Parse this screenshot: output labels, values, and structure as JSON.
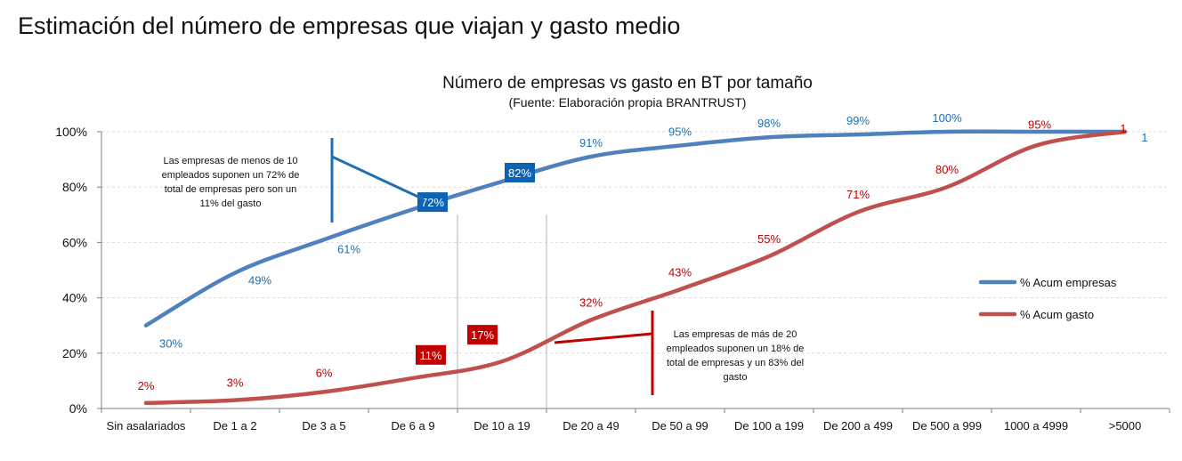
{
  "page": {
    "title": "Estimación del número de empresas que viajan y gasto medio"
  },
  "chart_data": {
    "type": "line",
    "title": "Número de empresas vs gasto en BT por tamaño",
    "subtitle": "(Fuente: Elaboración propia BRANTRUST)",
    "categories": [
      "Sin asalariados",
      "De 1 a 2",
      "De 3 a 5",
      "De 6 a 9",
      "De 10 a 19",
      "De 20 a 49",
      "De 50 a 99",
      "De 100 a 199",
      "De 200 a 499",
      "De 500 a 999",
      "1000 a 4999",
      ">5000"
    ],
    "ylim": [
      0,
      1
    ],
    "yticks": [
      {
        "value": 0,
        "label": "0%"
      },
      {
        "value": 0.2,
        "label": "20%"
      },
      {
        "value": 0.4,
        "label": "40%"
      },
      {
        "value": 0.6,
        "label": "60%"
      },
      {
        "value": 0.8,
        "label": "80%"
      },
      {
        "value": 1.0,
        "label": "100%"
      }
    ],
    "grid": true,
    "legend_position": "right",
    "series": [
      {
        "name": "% Acum empresas",
        "color": "#4f81bd",
        "label_color": "#1f6fb4",
        "values": [
          0.3,
          0.49,
          0.61,
          0.72,
          0.82,
          0.91,
          0.95,
          0.98,
          0.99,
          1.0,
          1.0,
          1.0
        ],
        "labels": [
          "30%",
          "49%",
          "61%",
          "72%",
          "82%",
          "91%",
          "95%",
          "98%",
          "99%",
          "100%",
          "",
          "1"
        ],
        "boxed": [
          3,
          4
        ]
      },
      {
        "name": "% Acum gasto",
        "color": "#c0504d",
        "label_color": "#c00000",
        "values": [
          0.02,
          0.03,
          0.06,
          0.11,
          0.17,
          0.32,
          0.43,
          0.55,
          0.71,
          0.8,
          0.95,
          1.0
        ],
        "labels": [
          "2%",
          "3%",
          "6%",
          "11%",
          "17%",
          "32%",
          "43%",
          "55%",
          "71%",
          "80%",
          "95%",
          "1"
        ],
        "boxed": [
          3,
          4
        ]
      }
    ],
    "annotations": [
      {
        "lines": [
          "Las empresas de menos de 10",
          "empleados suponen un 72% de",
          "total de empresas pero son un",
          "11% del gasto"
        ],
        "color": "#1f6fb4"
      },
      {
        "lines": [
          "Las empresas de más de 20",
          "empleados suponen un 18% de",
          "total de empresas y un 83% del",
          "gasto"
        ],
        "color": "#c00000"
      }
    ]
  }
}
